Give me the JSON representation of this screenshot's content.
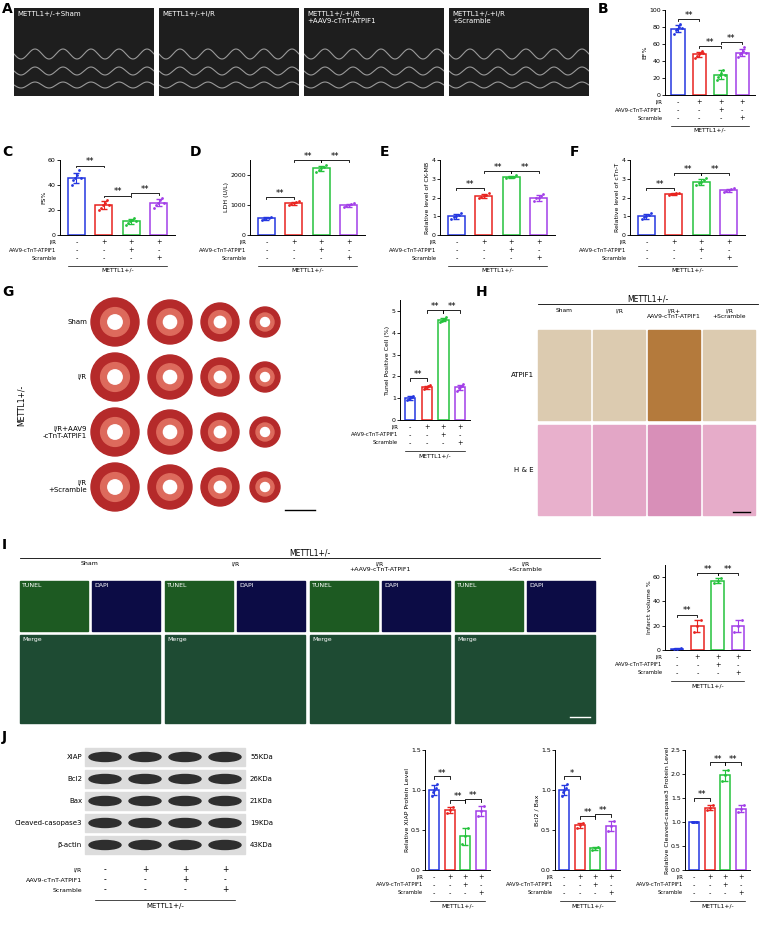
{
  "panel_letters": [
    "A",
    "B",
    "C",
    "D",
    "E",
    "F",
    "G",
    "H",
    "I",
    "J"
  ],
  "conditions": {
    "rows": [
      {
        "label": "I/R",
        "signs": [
          "-",
          "+",
          "+",
          "+"
        ]
      },
      {
        "label": "AAV9-cTnT-ATPIF1",
        "signs": [
          "-",
          "-",
          "+",
          "-"
        ]
      },
      {
        "label": "Scramble",
        "signs": [
          "-",
          "-",
          "-",
          "+"
        ]
      }
    ],
    "group": "METTL1+/-"
  },
  "images": {
    "A": {
      "labels": [
        "METTL1+/-+Sham",
        "METTL1+/-+I/R",
        "METTL1+/-+I/R\n+AAV9-cTnT-ATPIF1",
        "METTL1+/-+I/R\n+Scramble"
      ]
    },
    "G": {
      "group": "METTL1+/-",
      "rows": [
        "Sham",
        "I/R",
        "I/R+AAV9\n-cTnT-ATPIF1",
        "I/R\n+Scramble"
      ]
    },
    "H": {
      "group": "METTL1+/-",
      "columns": [
        "Sham",
        "I/R",
        "I/R+\nAAV9-cTnT-ATPIF1",
        "I/R\n+Scramble"
      ],
      "rows": [
        "ATPIF1",
        "H & E"
      ]
    },
    "I": {
      "group": "METTL1+/-",
      "columns": [
        "Sham",
        "I/R",
        "I/R\n+AAV9-cTnT-ATPIF1",
        "I/R\n+Scramble"
      ],
      "channels": [
        "TUNEL",
        "DAPI",
        "Merge"
      ]
    },
    "J": {
      "proteins": [
        {
          "name": "XIAP",
          "size": "55KDa"
        },
        {
          "name": "Bcl2",
          "size": "26KDa"
        },
        {
          "name": "Bax",
          "size": "21KDa"
        },
        {
          "name": "Cleaved-casopase3",
          "size": "19KDa"
        },
        {
          "name": "β-actin",
          "size": "43KDa"
        }
      ]
    }
  },
  "chart_data": [
    {
      "type": "bar",
      "y_label": "EF%",
      "categories": [
        null,
        null,
        null,
        null
      ],
      "values": [
        78,
        48,
        24,
        50
      ],
      "errors": [
        4,
        3,
        5,
        4
      ],
      "points": [
        [
          72,
          76,
          78,
          80,
          83,
          79
        ],
        [
          44,
          46,
          48,
          50,
          52,
          49
        ],
        [
          18,
          21,
          24,
          26,
          30,
          23
        ],
        [
          45,
          48,
          50,
          52,
          56,
          49
        ]
      ],
      "colors": [
        "#2437e0",
        "#e8231f",
        "#24c23c",
        "#a23ee8"
      ],
      "ylim": [
        0,
        100
      ],
      "yticks": [
        0,
        20,
        40,
        60,
        80,
        100
      ],
      "significance": [
        {
          "pair": [
            0,
            1
          ],
          "label": "**"
        },
        {
          "pair": [
            1,
            2
          ],
          "label": "**"
        },
        {
          "pair": [
            2,
            3
          ],
          "label": "**"
        }
      ]
    },
    {
      "type": "bar",
      "y_label": "FS%",
      "categories": [
        null,
        null,
        null,
        null
      ],
      "values": [
        46,
        24,
        11,
        26
      ],
      "errors": [
        4,
        3,
        2,
        3
      ],
      "points": [
        [
          40,
          44,
          46,
          48,
          52,
          46
        ],
        [
          20,
          22,
          24,
          26,
          28,
          24
        ],
        [
          8,
          10,
          11,
          12,
          14,
          11
        ],
        [
          22,
          24,
          26,
          28,
          30,
          26
        ]
      ],
      "colors": [
        "#2437e0",
        "#e8231f",
        "#24c23c",
        "#a23ee8"
      ],
      "ylim": [
        0,
        60
      ],
      "yticks": [
        0,
        20,
        40,
        60
      ],
      "significance": [
        {
          "pair": [
            0,
            1
          ],
          "label": "**"
        },
        {
          "pair": [
            1,
            2
          ],
          "label": "**"
        },
        {
          "pair": [
            2,
            3
          ],
          "label": "**"
        }
      ]
    },
    {
      "type": "bar",
      "y_label": "LDH (U/L)",
      "categories": [
        null,
        null,
        null,
        null
      ],
      "values": [
        560,
        1060,
        2220,
        1000
      ],
      "errors": [
        45,
        50,
        90,
        50
      ],
      "points": [
        [
          500,
          540,
          560,
          580,
          610
        ],
        [
          1000,
          1040,
          1060,
          1090,
          1120
        ],
        [
          2100,
          2180,
          2220,
          2260,
          2340
        ],
        [
          940,
          980,
          1000,
          1020,
          1070
        ]
      ],
      "colors": [
        "#2437e0",
        "#e8231f",
        "#24c23c",
        "#a23ee8"
      ],
      "ylim": [
        0,
        2500
      ],
      "yticks": [
        0,
        1000,
        2000
      ],
      "significance": [
        {
          "pair": [
            0,
            1
          ],
          "label": "**"
        },
        {
          "pair": [
            1,
            2
          ],
          "label": "**"
        },
        {
          "pair": [
            2,
            3
          ],
          "label": "**"
        }
      ]
    },
    {
      "type": "bar",
      "y_label": "Relative level of CK-MB",
      "categories": [
        null,
        null,
        null,
        null
      ],
      "values": [
        1.0,
        2.1,
        3.1,
        2.0
      ],
      "errors": [
        0.12,
        0.1,
        0.06,
        0.16
      ],
      "points": [
        [
          0.85,
          0.95,
          1.0,
          1.05,
          1.15
        ],
        [
          1.95,
          2.05,
          2.1,
          2.15,
          2.25
        ],
        [
          3.02,
          3.08,
          3.1,
          3.12,
          3.18
        ],
        [
          1.8,
          1.95,
          2.0,
          2.1,
          2.2
        ]
      ],
      "colors": [
        "#2437e0",
        "#e8231f",
        "#24c23c",
        "#a23ee8"
      ],
      "ylim": [
        0,
        4
      ],
      "yticks": [
        0,
        1,
        2,
        3,
        4
      ],
      "significance": [
        {
          "pair": [
            0,
            1
          ],
          "label": "**"
        },
        {
          "pair": [
            1,
            2
          ],
          "label": "**"
        },
        {
          "pair": [
            2,
            3
          ],
          "label": "**"
        }
      ]
    },
    {
      "type": "bar",
      "y_label": "Relative level of cTn-T",
      "categories": [
        null,
        null,
        null,
        null
      ],
      "values": [
        1.0,
        2.2,
        2.85,
        2.4
      ],
      "errors": [
        0.12,
        0.05,
        0.16,
        0.08
      ],
      "points": [
        [
          0.85,
          0.95,
          1.0,
          1.05,
          1.15
        ],
        [
          2.14,
          2.18,
          2.2,
          2.22,
          2.26
        ],
        [
          2.65,
          2.8,
          2.85,
          2.95,
          3.05
        ],
        [
          2.3,
          2.35,
          2.4,
          2.45,
          2.5
        ]
      ],
      "colors": [
        "#2437e0",
        "#e8231f",
        "#24c23c",
        "#a23ee8"
      ],
      "ylim": [
        0,
        4
      ],
      "yticks": [
        0,
        1,
        2,
        3,
        4
      ],
      "significance": [
        {
          "pair": [
            0,
            1
          ],
          "label": "**"
        },
        {
          "pair": [
            1,
            2
          ],
          "label": "**"
        },
        {
          "pair": [
            2,
            3
          ],
          "label": "**"
        }
      ]
    },
    {
      "type": "bar",
      "y_label": "Tunel Positive Cell (%)",
      "categories": [
        null,
        null,
        null,
        null
      ],
      "values": [
        1.0,
        1.5,
        4.6,
        1.5
      ],
      "errors": [
        0.08,
        0.08,
        0.08,
        0.12
      ],
      "points": [
        [
          0.9,
          0.95,
          1.0,
          1.05,
          1.1
        ],
        [
          1.4,
          1.45,
          1.5,
          1.55,
          1.6
        ],
        [
          4.5,
          4.55,
          4.6,
          4.65,
          4.7
        ],
        [
          1.35,
          1.45,
          1.5,
          1.55,
          1.65
        ]
      ],
      "colors": [
        "#2437e0",
        "#e8231f",
        "#24c23c",
        "#a23ee8"
      ],
      "ylim": [
        0,
        5.5
      ],
      "yticks": [
        0,
        1,
        2,
        3,
        4,
        5
      ],
      "significance": [
        {
          "pair": [
            0,
            1
          ],
          "label": "**"
        },
        {
          "pair": [
            1,
            2
          ],
          "label": "**"
        },
        {
          "pair": [
            2,
            3
          ],
          "label": "**"
        }
      ]
    },
    {
      "type": "bar",
      "y_label": "Infarct volume %",
      "categories": [
        null,
        null,
        null,
        null
      ],
      "values": [
        1,
        20,
        57,
        20
      ],
      "errors": [
        0.5,
        5,
        2,
        5
      ],
      "points": [
        [
          0.5,
          1,
          1.5
        ],
        [
          15,
          20,
          25
        ],
        [
          55,
          57,
          59
        ],
        [
          15,
          20,
          25
        ]
      ],
      "colors": [
        "#2437e0",
        "#e8231f",
        "#24c23c",
        "#a23ee8"
      ],
      "ylim": [
        0,
        70
      ],
      "yticks": [
        0,
        20,
        40,
        60
      ],
      "significance": [
        {
          "pair": [
            0,
            1
          ],
          "label": "**"
        },
        {
          "pair": [
            1,
            2
          ],
          "label": "**"
        },
        {
          "pair": [
            2,
            3
          ],
          "label": "**"
        }
      ]
    },
    {
      "type": "bar",
      "y_label": "Relative XIAP Protein Level",
      "categories": [
        null,
        null,
        null,
        null
      ],
      "values": [
        1.0,
        0.75,
        0.42,
        0.74
      ],
      "errors": [
        0.06,
        0.04,
        0.11,
        0.06
      ],
      "points": [
        [
          0.93,
          0.97,
          1.0,
          1.03,
          1.08
        ],
        [
          0.71,
          0.75,
          0.79
        ],
        [
          0.32,
          0.42,
          0.53
        ],
        [
          0.68,
          0.74,
          0.8
        ]
      ],
      "colors": [
        "#2437e0",
        "#e8231f",
        "#24c23c",
        "#a23ee8"
      ],
      "ylim": [
        0,
        1.5
      ],
      "yticks": [
        {
          "value": 0,
          "label": "0.0"
        },
        0.5,
        {
          "value": 1,
          "label": "1.0"
        },
        1.5
      ],
      "significance": [
        {
          "pair": [
            0,
            1
          ],
          "label": "**"
        },
        {
          "pair": [
            1,
            2
          ],
          "label": "**"
        },
        {
          "pair": [
            2,
            3
          ],
          "label": "**"
        }
      ]
    },
    {
      "type": "bar",
      "y_label": "Bcl2 / Bax",
      "categories": [
        null,
        null,
        null,
        null
      ],
      "values": [
        1.0,
        0.56,
        0.27,
        0.55
      ],
      "errors": [
        0.06,
        0.03,
        0.02,
        0.06
      ],
      "points": [
        [
          0.93,
          0.97,
          1.0,
          1.03,
          1.08
        ],
        [
          0.53,
          0.56,
          0.59
        ],
        [
          0.25,
          0.27,
          0.29
        ],
        [
          0.49,
          0.55,
          0.61
        ]
      ],
      "colors": [
        "#2437e0",
        "#e8231f",
        "#24c23c",
        "#a23ee8"
      ],
      "ylim": [
        0,
        1.5
      ],
      "yticks": [
        {
          "value": 0,
          "label": "0.0"
        },
        0.5,
        {
          "value": 1,
          "label": "1.0"
        },
        1.5
      ],
      "significance": [
        {
          "pair": [
            0,
            1
          ],
          "label": "*"
        },
        {
          "pair": [
            1,
            2
          ],
          "label": "**"
        },
        {
          "pair": [
            2,
            3
          ],
          "label": "**"
        }
      ]
    },
    {
      "type": "bar",
      "y_label": "Relative Cleaved-caspase3 Protein Level",
      "categories": [
        null,
        null,
        null,
        null
      ],
      "values": [
        1.0,
        1.3,
        1.97,
        1.28
      ],
      "errors": [
        0.01,
        0.06,
        0.12,
        0.08
      ],
      "points": [
        [
          1.0,
          1.0,
          1.0,
          1.0,
          1.0
        ],
        [
          1.24,
          1.3,
          1.36
        ],
        [
          1.85,
          1.97,
          2.09
        ],
        [
          1.2,
          1.28,
          1.36
        ]
      ],
      "colors": [
        "#2437e0",
        "#e8231f",
        "#24c23c",
        "#a23ee8"
      ],
      "ylim": [
        0,
        2.5
      ],
      "yticks": [
        {
          "value": 0,
          "label": "0.0"
        },
        0.5,
        {
          "value": 1,
          "label": "1.0"
        },
        1.5,
        {
          "value": 2,
          "label": "2.0"
        },
        2.5
      ],
      "significance": [
        {
          "pair": [
            0,
            1
          ],
          "label": "**"
        },
        {
          "pair": [
            1,
            2
          ],
          "label": "**"
        },
        {
          "pair": [
            2,
            3
          ],
          "label": "**"
        }
      ]
    }
  ]
}
